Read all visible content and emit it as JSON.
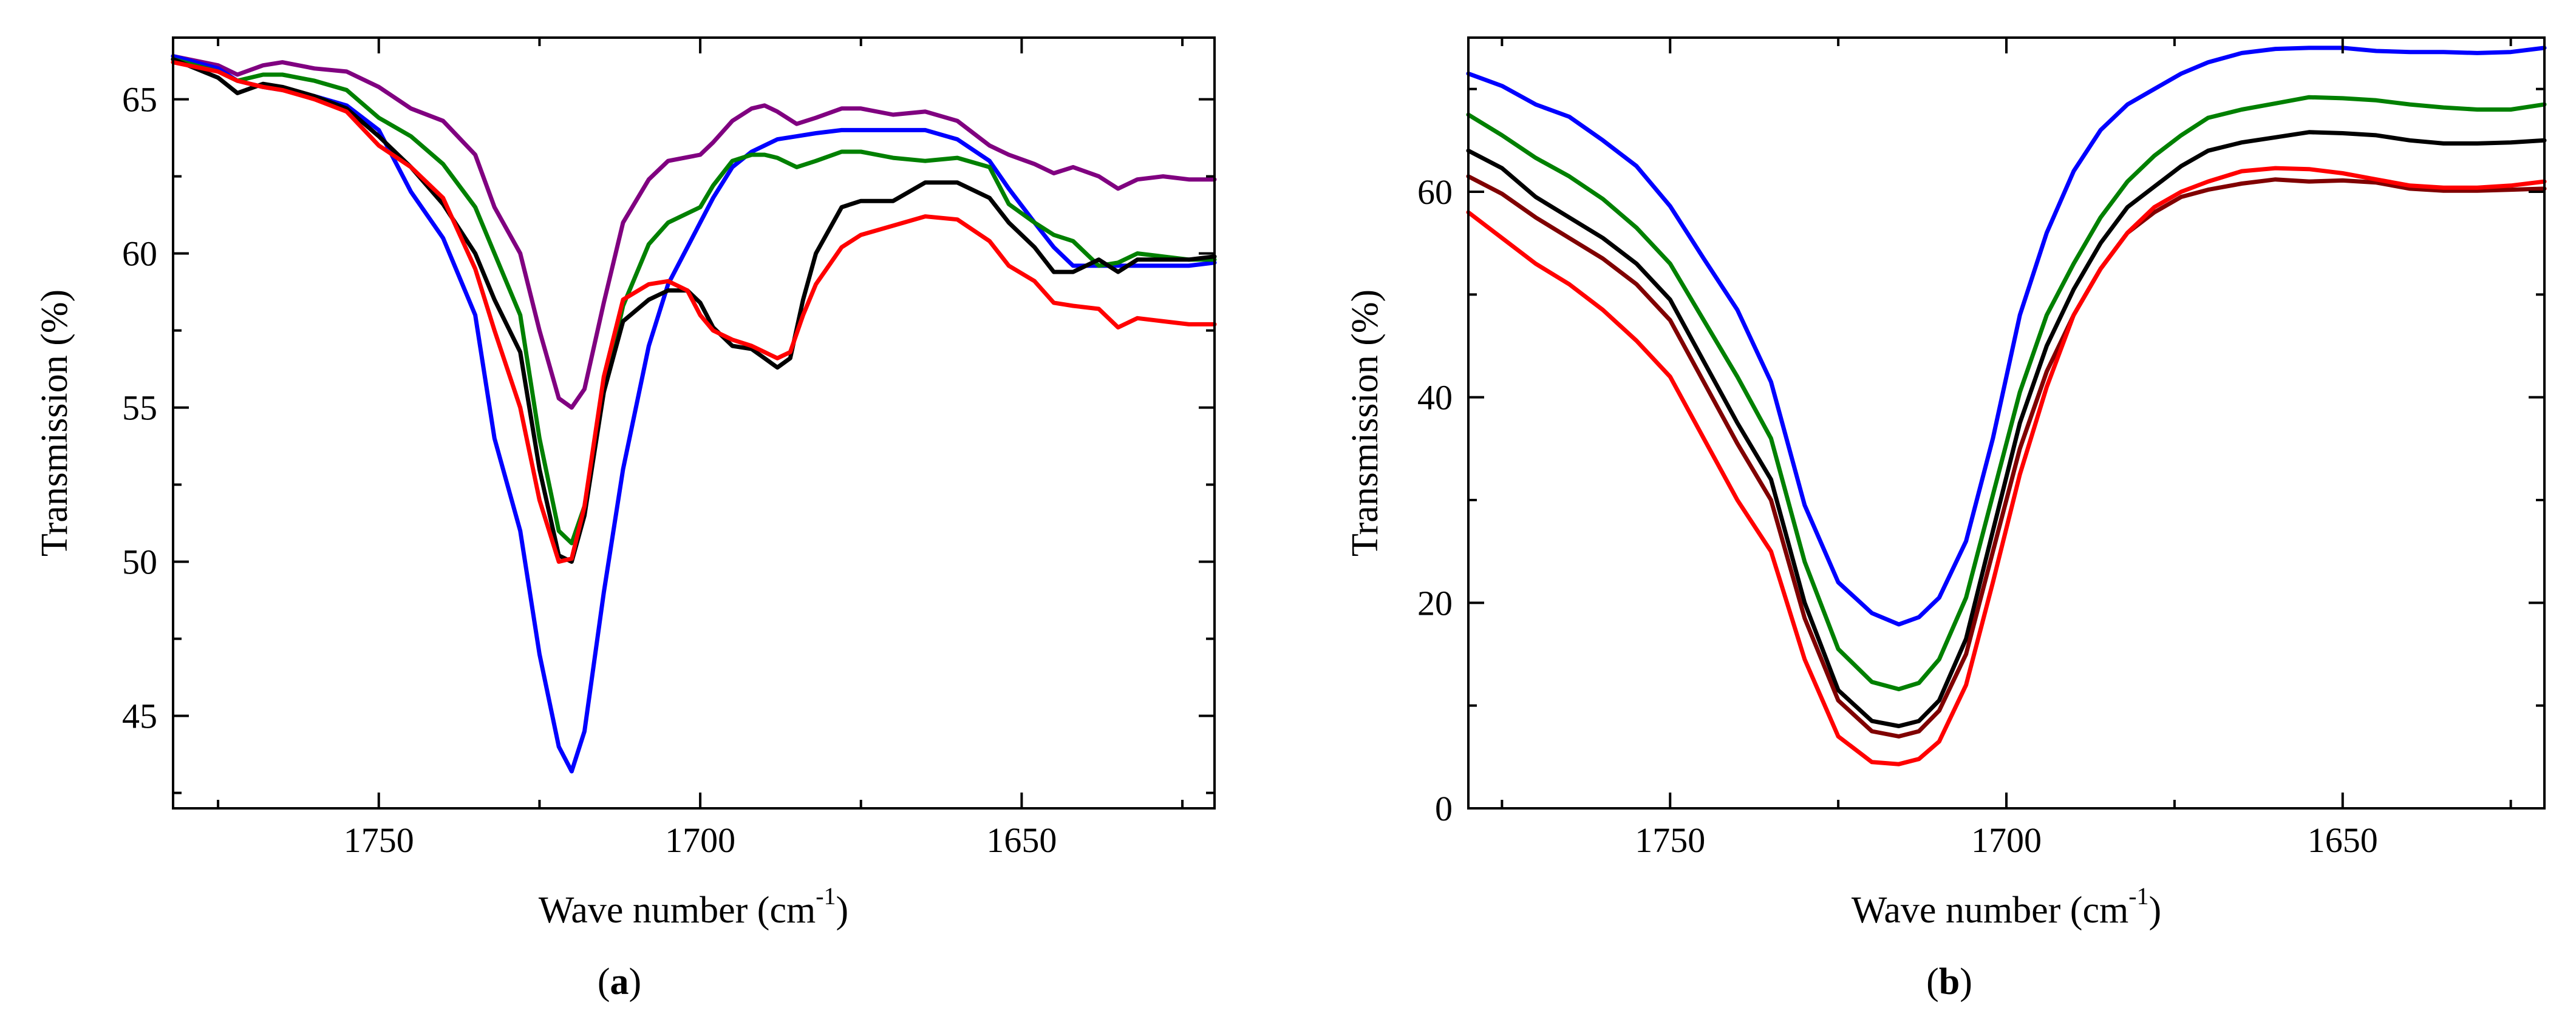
{
  "chart_data": [
    {
      "type": "line",
      "panel_label": "a",
      "xlabel": "Wave number",
      "xlabel_unit_base": "cm",
      "xlabel_unit_exp": "-1",
      "ylabel": "Transmission (%)",
      "xlim": [
        1782,
        1620
      ],
      "ylim": [
        42,
        67
      ],
      "xticks": [
        1750,
        1700,
        1650
      ],
      "yticks": [
        45,
        50,
        55,
        60,
        65
      ],
      "series": [
        {
          "name": "purple",
          "color": "#800080",
          "x": [
            1782,
            1775,
            1772,
            1768,
            1765,
            1760,
            1755,
            1750,
            1745,
            1740,
            1735,
            1732,
            1728,
            1725,
            1722,
            1720,
            1718,
            1715,
            1712,
            1708,
            1705,
            1700,
            1698,
            1695,
            1692,
            1690,
            1688,
            1685,
            1682,
            1678,
            1675,
            1670,
            1665,
            1660,
            1655,
            1652,
            1648,
            1645,
            1642,
            1638,
            1635,
            1632,
            1628,
            1624,
            1620
          ],
          "y": [
            66.4,
            66.1,
            65.8,
            66.1,
            66.2,
            66.0,
            65.9,
            65.4,
            64.7,
            64.3,
            63.2,
            61.5,
            60.0,
            57.5,
            55.3,
            55.0,
            55.6,
            58.4,
            61.0,
            62.4,
            63.0,
            63.2,
            63.6,
            64.3,
            64.7,
            64.8,
            64.6,
            64.2,
            64.4,
            64.7,
            64.7,
            64.5,
            64.6,
            64.3,
            63.5,
            63.2,
            62.9,
            62.6,
            62.8,
            62.5,
            62.1,
            62.4,
            62.5,
            62.4,
            62.4
          ]
        },
        {
          "name": "blue",
          "color": "#0000ff",
          "x": [
            1782,
            1775,
            1772,
            1768,
            1765,
            1760,
            1755,
            1750,
            1745,
            1740,
            1735,
            1732,
            1728,
            1725,
            1722,
            1720,
            1718,
            1715,
            1712,
            1708,
            1705,
            1700,
            1698,
            1695,
            1692,
            1690,
            1688,
            1685,
            1682,
            1678,
            1675,
            1670,
            1665,
            1660,
            1655,
            1652,
            1648,
            1645,
            1642,
            1638,
            1635,
            1632,
            1628,
            1624,
            1620
          ],
          "y": [
            66.4,
            66.0,
            65.6,
            65.4,
            65.3,
            65.1,
            64.8,
            64.0,
            62.0,
            60.5,
            58.0,
            54.0,
            51.0,
            47.0,
            44.0,
            43.2,
            44.5,
            49.0,
            53.0,
            57.0,
            59.0,
            61.0,
            61.8,
            62.8,
            63.3,
            63.5,
            63.7,
            63.8,
            63.9,
            64.0,
            64.0,
            64.0,
            64.0,
            63.7,
            63.0,
            62.1,
            61.0,
            60.2,
            59.6,
            59.6,
            59.6,
            59.6,
            59.6,
            59.6,
            59.7
          ]
        },
        {
          "name": "green",
          "color": "#008000",
          "x": [
            1782,
            1775,
            1772,
            1768,
            1765,
            1760,
            1755,
            1750,
            1745,
            1740,
            1735,
            1732,
            1728,
            1725,
            1722,
            1720,
            1718,
            1715,
            1712,
            1708,
            1705,
            1700,
            1698,
            1695,
            1692,
            1690,
            1688,
            1685,
            1682,
            1678,
            1675,
            1670,
            1665,
            1660,
            1655,
            1652,
            1648,
            1645,
            1642,
            1638,
            1635,
            1632,
            1628,
            1624,
            1620
          ],
          "y": [
            66.3,
            65.9,
            65.6,
            65.8,
            65.8,
            65.6,
            65.3,
            64.4,
            63.8,
            62.9,
            61.5,
            60.0,
            58.0,
            54.0,
            51.0,
            50.6,
            51.8,
            55.5,
            58.3,
            60.3,
            61.0,
            61.5,
            62.2,
            63.0,
            63.2,
            63.2,
            63.1,
            62.8,
            63.0,
            63.3,
            63.3,
            63.1,
            63.0,
            63.1,
            62.8,
            61.6,
            61.0,
            60.6,
            60.4,
            59.6,
            59.7,
            60.0,
            59.9,
            59.8,
            59.8
          ]
        },
        {
          "name": "black",
          "color": "#000000",
          "x": [
            1782,
            1775,
            1772,
            1768,
            1765,
            1760,
            1755,
            1750,
            1745,
            1740,
            1735,
            1732,
            1728,
            1725,
            1722,
            1720,
            1718,
            1715,
            1712,
            1708,
            1705,
            1702,
            1700,
            1698,
            1695,
            1692,
            1690,
            1688,
            1686,
            1684,
            1682,
            1678,
            1675,
            1670,
            1665,
            1660,
            1655,
            1652,
            1648,
            1645,
            1642,
            1638,
            1635,
            1632,
            1628,
            1624,
            1620
          ],
          "y": [
            66.3,
            65.7,
            65.2,
            65.5,
            65.4,
            65.1,
            64.7,
            63.8,
            62.8,
            61.6,
            60.0,
            58.5,
            56.8,
            53.0,
            50.2,
            50.0,
            51.5,
            55.5,
            57.8,
            58.5,
            58.8,
            58.8,
            58.4,
            57.6,
            57.0,
            56.9,
            56.6,
            56.3,
            56.6,
            58.5,
            60.0,
            61.5,
            61.7,
            61.7,
            62.3,
            62.3,
            61.8,
            61.0,
            60.2,
            59.4,
            59.4,
            59.8,
            59.4,
            59.8,
            59.8,
            59.8,
            59.9
          ]
        },
        {
          "name": "red",
          "color": "#ff0000",
          "x": [
            1782,
            1775,
            1772,
            1768,
            1765,
            1760,
            1755,
            1750,
            1745,
            1740,
            1735,
            1732,
            1728,
            1725,
            1722,
            1720,
            1718,
            1715,
            1712,
            1708,
            1705,
            1702,
            1700,
            1698,
            1695,
            1692,
            1690,
            1688,
            1686,
            1684,
            1682,
            1678,
            1675,
            1670,
            1665,
            1660,
            1655,
            1652,
            1648,
            1645,
            1642,
            1638,
            1635,
            1632,
            1628,
            1624,
            1620
          ],
          "y": [
            66.2,
            65.9,
            65.6,
            65.4,
            65.3,
            65.0,
            64.6,
            63.5,
            62.8,
            61.8,
            59.5,
            57.5,
            55.0,
            52.0,
            50.0,
            50.1,
            51.8,
            56.0,
            58.5,
            59.0,
            59.1,
            58.8,
            58.0,
            57.5,
            57.2,
            57.0,
            56.8,
            56.6,
            56.8,
            58.0,
            59.0,
            60.2,
            60.6,
            60.9,
            61.2,
            61.1,
            60.4,
            59.6,
            59.1,
            58.4,
            58.3,
            58.2,
            57.6,
            57.9,
            57.8,
            57.7,
            57.7
          ]
        }
      ]
    },
    {
      "type": "line",
      "panel_label": "b",
      "xlabel": "Wave number",
      "xlabel_unit_base": "cm",
      "xlabel_unit_exp": "-1",
      "ylabel": "Transmission (%)",
      "xlim": [
        1780,
        1620
      ],
      "ylim": [
        0,
        75
      ],
      "xticks": [
        1750,
        1700,
        1650
      ],
      "yticks": [
        0,
        20,
        40,
        60
      ],
      "series": [
        {
          "name": "blue",
          "color": "#0000ff",
          "x": [
            1780,
            1775,
            1770,
            1765,
            1760,
            1755,
            1750,
            1745,
            1740,
            1735,
            1730,
            1725,
            1720,
            1716,
            1713,
            1710,
            1706,
            1702,
            1698,
            1694,
            1690,
            1686,
            1682,
            1678,
            1674,
            1670,
            1665,
            1660,
            1655,
            1650,
            1645,
            1640,
            1635,
            1630,
            1625,
            1620
          ],
          "y": [
            71.5,
            70.3,
            68.5,
            67.3,
            65.0,
            62.5,
            58.6,
            53.5,
            48.5,
            41.5,
            29.5,
            22.0,
            19.0,
            17.9,
            18.6,
            20.5,
            26.0,
            36.0,
            48.0,
            56.0,
            62.0,
            66.0,
            68.5,
            70.0,
            71.5,
            72.6,
            73.5,
            73.9,
            74.0,
            74.0,
            73.7,
            73.6,
            73.6,
            73.5,
            73.6,
            74.0
          ]
        },
        {
          "name": "green",
          "color": "#008000",
          "x": [
            1780,
            1775,
            1770,
            1765,
            1760,
            1755,
            1750,
            1745,
            1740,
            1735,
            1730,
            1725,
            1720,
            1716,
            1713,
            1710,
            1706,
            1702,
            1698,
            1694,
            1690,
            1686,
            1682,
            1678,
            1674,
            1670,
            1665,
            1660,
            1655,
            1650,
            1645,
            1640,
            1635,
            1630,
            1625,
            1620
          ],
          "y": [
            67.5,
            65.5,
            63.3,
            61.5,
            59.3,
            56.5,
            53.0,
            47.5,
            42.0,
            36.0,
            24.0,
            15.5,
            12.3,
            11.6,
            12.2,
            14.5,
            20.5,
            30.5,
            40.5,
            48.0,
            53.0,
            57.5,
            61.0,
            63.5,
            65.5,
            67.2,
            68.0,
            68.6,
            69.2,
            69.1,
            68.9,
            68.5,
            68.2,
            68.0,
            68.0,
            68.5
          ]
        },
        {
          "name": "black",
          "color": "#000000",
          "x": [
            1780,
            1775,
            1770,
            1765,
            1760,
            1755,
            1750,
            1745,
            1740,
            1735,
            1730,
            1725,
            1720,
            1716,
            1713,
            1710,
            1706,
            1702,
            1698,
            1694,
            1690,
            1686,
            1682,
            1678,
            1674,
            1670,
            1665,
            1660,
            1655,
            1650,
            1645,
            1640,
            1635,
            1630,
            1625,
            1620
          ],
          "y": [
            64.0,
            62.3,
            59.5,
            57.5,
            55.5,
            53.0,
            49.5,
            43.5,
            37.5,
            32.0,
            20.0,
            11.5,
            8.5,
            8.0,
            8.5,
            10.5,
            16.5,
            27.0,
            37.5,
            45.0,
            50.5,
            55.0,
            58.5,
            60.5,
            62.5,
            64.0,
            64.8,
            65.3,
            65.8,
            65.7,
            65.5,
            65.0,
            64.7,
            64.7,
            64.8,
            65.0
          ]
        },
        {
          "name": "dark red",
          "color": "#800000",
          "x": [
            1780,
            1775,
            1770,
            1765,
            1760,
            1755,
            1750,
            1745,
            1740,
            1735,
            1730,
            1725,
            1720,
            1716,
            1713,
            1710,
            1706,
            1702,
            1698,
            1694,
            1690,
            1686,
            1682,
            1678,
            1674,
            1670,
            1665,
            1660,
            1655,
            1650,
            1645,
            1640,
            1635,
            1630,
            1625,
            1620
          ],
          "y": [
            61.5,
            59.8,
            57.5,
            55.5,
            53.5,
            51.0,
            47.5,
            41.5,
            35.5,
            30.0,
            18.5,
            10.5,
            7.5,
            7.0,
            7.5,
            9.5,
            15.0,
            25.0,
            35.0,
            42.5,
            48.0,
            52.5,
            56.0,
            58.0,
            59.5,
            60.2,
            60.8,
            61.2,
            61.0,
            61.1,
            60.9,
            60.3,
            60.1,
            60.1,
            60.2,
            60.3
          ]
        },
        {
          "name": "red",
          "color": "#ff0000",
          "x": [
            1780,
            1775,
            1770,
            1765,
            1760,
            1755,
            1750,
            1745,
            1740,
            1735,
            1730,
            1725,
            1720,
            1716,
            1713,
            1710,
            1706,
            1702,
            1698,
            1694,
            1690,
            1686,
            1682,
            1678,
            1674,
            1670,
            1665,
            1660,
            1655,
            1650,
            1645,
            1640,
            1635,
            1630,
            1625,
            1620
          ],
          "y": [
            58.0,
            55.5,
            53.0,
            51.0,
            48.5,
            45.5,
            42.0,
            36.0,
            30.0,
            25.0,
            14.5,
            7.0,
            4.5,
            4.3,
            4.8,
            6.5,
            12.0,
            22.0,
            32.5,
            41.0,
            48.0,
            52.5,
            56.0,
            58.5,
            60.0,
            61.0,
            62.0,
            62.3,
            62.2,
            61.8,
            61.2,
            60.6,
            60.4,
            60.4,
            60.6,
            61.0
          ]
        }
      ]
    }
  ]
}
